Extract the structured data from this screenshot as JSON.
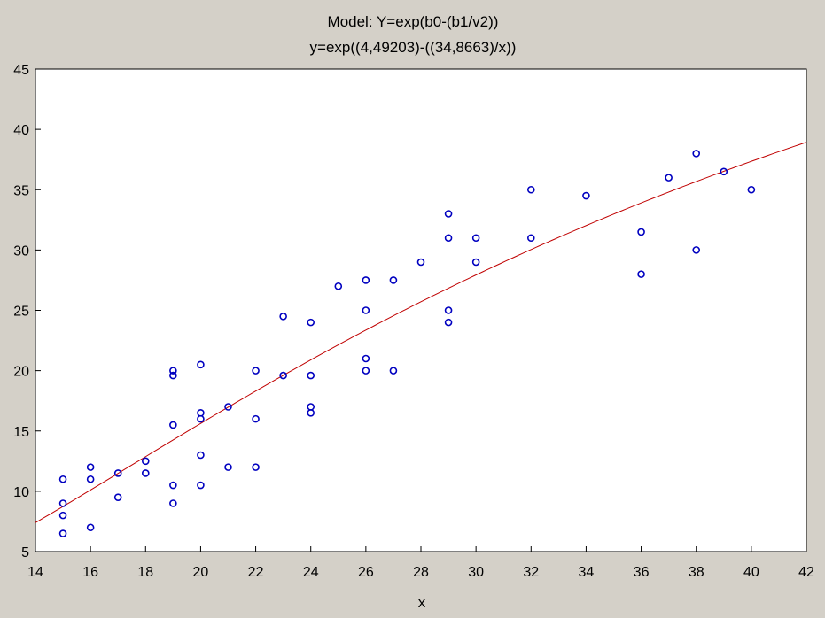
{
  "chart_data": {
    "type": "scatter",
    "title": "Model: Y=exp(b0-(b1/v2))",
    "subtitle": "y=exp((4,49203)-((34,8663)/x))",
    "xlabel": "x",
    "ylabel": "",
    "xlim": [
      14,
      42
    ],
    "ylim": [
      5,
      45
    ],
    "xticks": [
      "14",
      "16",
      "18",
      "20",
      "22",
      "24",
      "26",
      "28",
      "30",
      "32",
      "34",
      "36",
      "38",
      "40",
      "42"
    ],
    "yticks": [
      "5",
      "10",
      "15",
      "20",
      "25",
      "30",
      "35",
      "40",
      "45"
    ],
    "grid": false,
    "legend": "none",
    "colors": {
      "background": "#d4d0c8",
      "plot_area": "#ffffff",
      "points": "#0000c0",
      "fit_line": "#c00000"
    },
    "fit": {
      "b0": 4.49203,
      "b1": 34.8663,
      "x_range": [
        14,
        42
      ]
    },
    "points": [
      [
        15,
        11
      ],
      [
        15,
        9
      ],
      [
        15,
        8
      ],
      [
        15,
        6.5
      ],
      [
        16,
        12
      ],
      [
        16,
        11
      ],
      [
        16,
        7
      ],
      [
        17,
        11.5
      ],
      [
        17,
        9.5
      ],
      [
        18,
        12.5
      ],
      [
        18,
        11.5
      ],
      [
        19,
        20
      ],
      [
        19,
        19.6
      ],
      [
        19,
        15.5
      ],
      [
        19,
        10.5
      ],
      [
        19,
        9
      ],
      [
        20,
        20.5
      ],
      [
        20,
        16.5
      ],
      [
        20,
        16
      ],
      [
        20,
        13
      ],
      [
        20,
        10.5
      ],
      [
        21,
        17
      ],
      [
        21,
        12
      ],
      [
        22,
        20
      ],
      [
        22,
        16
      ],
      [
        22,
        12
      ],
      [
        23,
        24.5
      ],
      [
        23,
        19.6
      ],
      [
        24,
        24
      ],
      [
        24,
        19.6
      ],
      [
        24,
        17
      ],
      [
        24,
        16.5
      ],
      [
        25,
        27
      ],
      [
        26,
        27.5
      ],
      [
        26,
        25
      ],
      [
        26,
        21
      ],
      [
        26,
        20
      ],
      [
        27,
        27.5
      ],
      [
        27,
        20
      ],
      [
        28,
        29
      ],
      [
        29,
        33
      ],
      [
        29,
        31
      ],
      [
        29,
        25
      ],
      [
        29,
        24
      ],
      [
        30,
        31
      ],
      [
        30,
        29
      ],
      [
        32,
        35
      ],
      [
        32,
        31
      ],
      [
        34,
        34.5
      ],
      [
        36,
        31.5
      ],
      [
        36,
        28
      ],
      [
        37,
        36
      ],
      [
        38,
        38
      ],
      [
        38,
        30
      ],
      [
        39,
        36.5
      ],
      [
        40,
        35
      ]
    ]
  }
}
